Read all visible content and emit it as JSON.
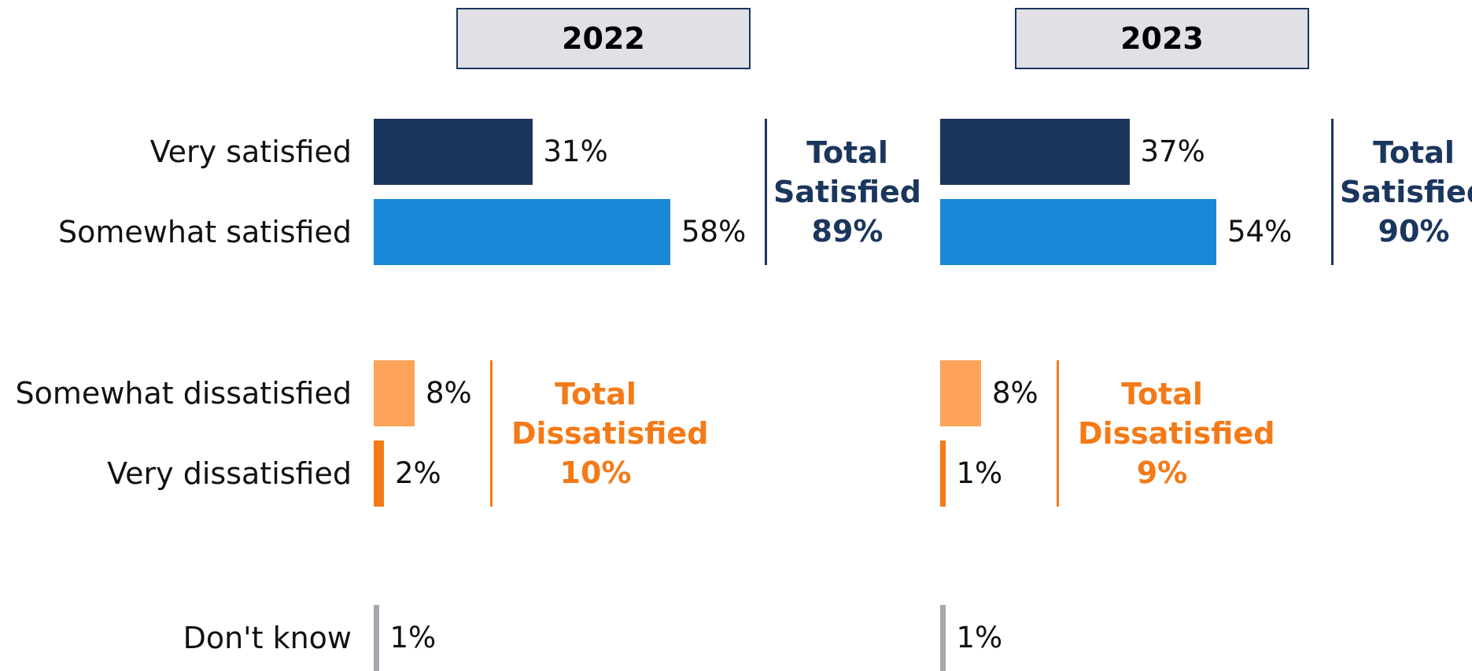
{
  "chart_data": {
    "type": "bar",
    "orientation": "horizontal",
    "categories": [
      "Very satisfied",
      "Somewhat satisfied",
      "Somewhat dissatisfied",
      "Very dissatisfied",
      "Don't know"
    ],
    "colors": [
      "#1b365d",
      "#1a88d8",
      "#fda35a",
      "#f47a17",
      "#a6a6ae"
    ],
    "series": [
      {
        "name": "2022",
        "values": [
          31,
          58,
          8,
          2,
          1
        ],
        "value_labels": [
          "31%",
          "58%",
          "8%",
          "2%",
          "1%"
        ],
        "groups": [
          {
            "label": "Total Satisfied",
            "value": 89,
            "value_label": "89%",
            "color": "#1b365d"
          },
          {
            "label": "Total Dissatisfied",
            "value": 10,
            "value_label": "10%",
            "color": "#f47a17"
          }
        ]
      },
      {
        "name": "2023",
        "values": [
          37,
          54,
          8,
          1,
          1
        ],
        "value_labels": [
          "37%",
          "54%",
          "8%",
          "1%",
          "1%"
        ],
        "groups": [
          {
            "label": "Total Satisfied",
            "value": 90,
            "value_label": "90%",
            "color": "#1b365d"
          },
          {
            "label": "Total Dissatisfied",
            "value": 9,
            "value_label": "9%",
            "color": "#f47a17"
          }
        ]
      }
    ]
  }
}
